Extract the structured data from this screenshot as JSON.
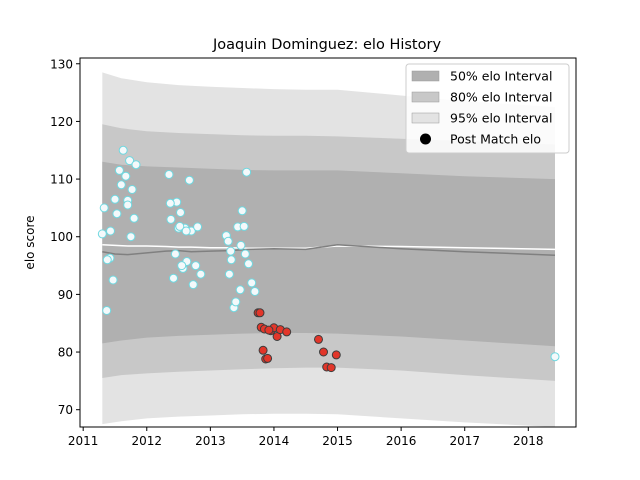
{
  "chart_data": {
    "type": "scatter",
    "title": "Joaquin Dominguez: elo History",
    "xlabel": "",
    "ylabel": "elo score",
    "xlim": [
      2010.95,
      2018.75
    ],
    "ylim": [
      67,
      131
    ],
    "x_ticks": [
      2011,
      2012,
      2013,
      2014,
      2015,
      2016,
      2017,
      2018
    ],
    "y_ticks": [
      70,
      80,
      90,
      100,
      110,
      120,
      130
    ],
    "grid": false,
    "legend_position": "top-right",
    "legend": [
      {
        "label": "50% elo Interval",
        "kind": "patch",
        "color": "#b0b0b0"
      },
      {
        "label": "80% elo Interval",
        "kind": "patch",
        "color": "#c8c8c8"
      },
      {
        "label": "95% elo Interval",
        "kind": "patch",
        "color": "#e3e3e3"
      },
      {
        "label": "Post Match elo",
        "kind": "marker",
        "color": "#000000"
      }
    ],
    "bands": {
      "x": [
        2011.3,
        2011.6,
        2012.0,
        2012.5,
        2013.0,
        2013.5,
        2014.0,
        2014.5,
        2015.0,
        2016.0,
        2017.0,
        2018.42
      ],
      "p95": {
        "color": "#e3e3e3",
        "upper": [
          128.5,
          127.5,
          126.8,
          126.3,
          126.0,
          125.8,
          125.6,
          125.5,
          125.5,
          124.5,
          123.5,
          122.5
        ],
        "lower": [
          67.5,
          68.0,
          68.5,
          68.8,
          69.0,
          69.2,
          69.3,
          69.3,
          69.2,
          68.5,
          67.8,
          67.0
        ]
      },
      "p80": {
        "color": "#c8c8c8",
        "upper": [
          119.5,
          118.8,
          118.3,
          118.0,
          117.8,
          117.6,
          117.5,
          117.5,
          117.4,
          117.0,
          116.6,
          116.0
        ],
        "lower": [
          75.5,
          76.0,
          76.3,
          76.6,
          76.8,
          77.0,
          77.2,
          77.3,
          77.3,
          76.8,
          76.0,
          75.0
        ]
      },
      "p50": {
        "color": "#b0b0b0",
        "upper": [
          113.0,
          112.5,
          112.2,
          112.0,
          111.8,
          111.6,
          111.5,
          111.5,
          111.5,
          111.0,
          110.5,
          110.0
        ],
        "lower": [
          81.5,
          82.0,
          82.5,
          82.8,
          83.0,
          83.2,
          83.3,
          83.3,
          83.2,
          82.7,
          82.0,
          81.0
        ]
      }
    },
    "series": [
      {
        "kind": "line",
        "color": "#ffffff",
        "x": [
          2011.3,
          2011.5,
          2011.7,
          2012.0,
          2012.3,
          2012.5,
          2012.7,
          2013.0,
          2013.3,
          2013.6,
          2014.0,
          2014.5,
          2015.0,
          2016.0,
          2017.0,
          2018.42
        ],
        "y": [
          98.6,
          98.5,
          98.4,
          98.4,
          98.3,
          98.2,
          98.2,
          98.1,
          98.1,
          98.0,
          98.0,
          98.0,
          98.4,
          98.3,
          98.1,
          97.8
        ]
      },
      {
        "kind": "line",
        "color": "#808080",
        "x": [
          2011.3,
          2011.5,
          2011.7,
          2012.0,
          2012.3,
          2012.5,
          2012.7,
          2013.0,
          2013.3,
          2013.6,
          2014.0,
          2014.5,
          2015.0,
          2016.0,
          2017.0,
          2018.42
        ],
        "y": [
          97.4,
          97.0,
          96.9,
          97.2,
          97.5,
          97.6,
          97.4,
          97.5,
          97.6,
          97.8,
          97.9,
          97.8,
          98.6,
          97.9,
          97.4,
          96.8
        ]
      },
      {
        "kind": "scatter",
        "fill": "#f4f9fb",
        "stroke": "#6fd8e0",
        "x": [
          2011.3,
          2011.33,
          2011.37,
          2011.42,
          2011.47,
          2011.5,
          2011.53,
          2011.57,
          2011.6,
          2011.63,
          2011.67,
          2011.7,
          2011.73,
          2011.77,
          2011.8,
          2011.83,
          2011.43,
          2011.38,
          2011.7,
          2011.75,
          2012.35,
          2012.38,
          2012.42,
          2012.47,
          2012.5,
          2012.53,
          2012.57,
          2012.6,
          2012.63,
          2012.67,
          2012.7,
          2012.73,
          2012.77,
          2012.8,
          2012.85,
          2012.37,
          2012.45,
          2012.52,
          2012.55,
          2012.62,
          2013.25,
          2013.28,
          2013.3,
          2013.33,
          2013.37,
          2013.4,
          2013.43,
          2013.47,
          2013.5,
          2013.53,
          2013.57,
          2013.6,
          2013.65,
          2013.32,
          2013.48,
          2013.55,
          2013.7,
          2018.42
        ],
        "y": [
          100.5,
          105.0,
          87.2,
          96.3,
          92.5,
          106.5,
          104.0,
          111.5,
          109.0,
          115.0,
          110.5,
          106.3,
          113.2,
          108.2,
          103.2,
          112.5,
          101.0,
          96.0,
          105.5,
          100.0,
          110.8,
          103.0,
          92.8,
          106.0,
          101.5,
          104.2,
          94.5,
          101.5,
          95.7,
          109.8,
          101.0,
          91.7,
          95.0,
          101.7,
          93.5,
          105.8,
          97.0,
          101.8,
          95.0,
          101.0,
          100.2,
          99.2,
          93.5,
          96.0,
          87.7,
          88.7,
          101.7,
          90.8,
          104.5,
          101.8,
          111.2,
          95.3,
          92.0,
          97.5,
          98.5,
          97.0,
          90.5,
          79.2
        ]
      },
      {
        "kind": "scatter",
        "fill": "#e2362a",
        "stroke": "#3d3d3d",
        "x": [
          2013.75,
          2013.8,
          2013.83,
          2013.87,
          2013.9,
          2013.95,
          2014.0,
          2014.05,
          2014.1,
          2014.2,
          2014.7,
          2014.78,
          2014.83,
          2014.9,
          2014.98,
          2013.85,
          2013.92,
          2013.78
        ],
        "y": [
          86.8,
          84.3,
          80.3,
          78.8,
          78.9,
          83.7,
          84.2,
          82.7,
          83.9,
          83.5,
          82.2,
          80.0,
          77.4,
          77.3,
          79.5,
          84.0,
          83.8,
          86.8
        ]
      }
    ]
  }
}
